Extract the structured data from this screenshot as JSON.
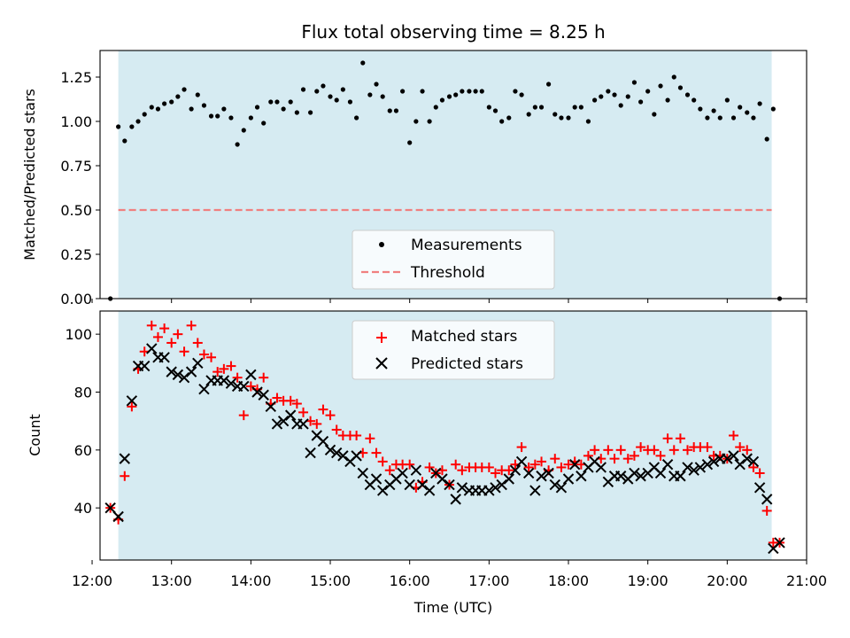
{
  "figure": {
    "title": "Flux total observing time = 8.25 h"
  },
  "chart_data": [
    {
      "type": "scatter",
      "title": "Flux total observing time = 8.25 h",
      "xlabel": "",
      "ylabel": "Matched/Predicted stars",
      "xlim": [
        12.1,
        21.0
      ],
      "ylim": [
        0.0,
        1.4
      ],
      "yticks": [
        0.0,
        0.25,
        0.5,
        0.75,
        1.0,
        1.25
      ],
      "ytick_labels": [
        "0.00",
        "0.25",
        "0.50",
        "0.75",
        "1.00",
        "1.25"
      ],
      "grid": false,
      "legend": {
        "placement": "lower-center",
        "entries": [
          "Measurements",
          "Threshold"
        ]
      },
      "observing_window": {
        "start": 12.33,
        "end": 20.56,
        "color": "#add8e6"
      },
      "threshold": {
        "name": "Threshold",
        "value": 0.5,
        "x_range": [
          12.33,
          20.56
        ],
        "color": "#f08080",
        "style": "dashed"
      },
      "series": [
        {
          "name": "Measurements",
          "color": "#000000",
          "marker": "dot",
          "x": [
            12.23,
            12.33,
            12.41,
            12.5,
            12.58,
            12.66,
            12.75,
            12.83,
            12.91,
            13.0,
            13.08,
            13.16,
            13.25,
            13.33,
            13.41,
            13.5,
            13.58,
            13.66,
            13.75,
            13.83,
            13.91,
            14.0,
            14.08,
            14.16,
            14.25,
            14.33,
            14.41,
            14.5,
            14.58,
            14.66,
            14.75,
            14.83,
            14.91,
            15.0,
            15.08,
            15.16,
            15.25,
            15.33,
            15.41,
            15.5,
            15.58,
            15.66,
            15.75,
            15.83,
            15.91,
            16.0,
            16.08,
            16.16,
            16.25,
            16.33,
            16.41,
            16.5,
            16.58,
            16.66,
            16.75,
            16.83,
            16.91,
            17.0,
            17.08,
            17.16,
            17.25,
            17.33,
            17.41,
            17.5,
            17.58,
            17.66,
            17.75,
            17.83,
            17.91,
            18.0,
            18.08,
            18.16,
            18.25,
            18.33,
            18.41,
            18.5,
            18.58,
            18.66,
            18.75,
            18.83,
            18.91,
            19.0,
            19.08,
            19.16,
            19.25,
            19.33,
            19.41,
            19.5,
            19.58,
            19.66,
            19.75,
            19.83,
            19.91,
            20.0,
            20.08,
            20.16,
            20.25,
            20.33,
            20.41,
            20.5,
            20.58,
            20.66
          ],
          "y": [
            0.0,
            0.97,
            0.89,
            0.97,
            1.0,
            1.04,
            1.08,
            1.07,
            1.1,
            1.11,
            1.14,
            1.18,
            1.07,
            1.15,
            1.09,
            1.03,
            1.03,
            1.07,
            1.02,
            0.87,
            0.95,
            1.02,
            1.08,
            0.99,
            1.11,
            1.11,
            1.07,
            1.11,
            1.05,
            1.18,
            1.05,
            1.17,
            1.2,
            1.14,
            1.12,
            1.18,
            1.11,
            1.02,
            1.33,
            1.15,
            1.21,
            1.14,
            1.06,
            1.06,
            1.17,
            0.88,
            1.0,
            1.17,
            1.0,
            1.08,
            1.12,
            1.14,
            1.15,
            1.17,
            1.17,
            1.17,
            1.17,
            1.08,
            1.06,
            1.0,
            1.02,
            1.17,
            1.15,
            1.04,
            1.08,
            1.08,
            1.21,
            1.04,
            1.02,
            1.02,
            1.08,
            1.08,
            1.0,
            1.12,
            1.14,
            1.17,
            1.15,
            1.09,
            1.14,
            1.22,
            1.11,
            1.17,
            1.04,
            1.2,
            1.12,
            1.25,
            1.19,
            1.15,
            1.12,
            1.07,
            1.02,
            1.06,
            1.02,
            1.12,
            1.02,
            1.08,
            1.05,
            1.02,
            1.1,
            0.9,
            1.07,
            0.0
          ]
        }
      ]
    },
    {
      "type": "scatter",
      "title": "",
      "xlabel": "Time (UTC)",
      "ylabel": "Count",
      "xlim": [
        12.1,
        21.0
      ],
      "ylim": [
        22,
        108
      ],
      "yticks": [
        40,
        60,
        80,
        100
      ],
      "ytick_labels": [
        "40",
        "60",
        "80",
        "100"
      ],
      "xticks": [
        12,
        13,
        14,
        15,
        16,
        17,
        18,
        19,
        20,
        21
      ],
      "xtick_labels": [
        "12:00",
        "13:00",
        "14:00",
        "15:00",
        "16:00",
        "17:00",
        "18:00",
        "19:00",
        "20:00",
        "21:00"
      ],
      "grid": false,
      "legend": {
        "placement": "upper-center",
        "entries": [
          "Matched stars",
          "Predicted stars"
        ]
      },
      "observing_window": {
        "start": 12.33,
        "end": 20.56,
        "color": "#add8e6"
      },
      "x": [
        12.23,
        12.33,
        12.41,
        12.5,
        12.58,
        12.66,
        12.75,
        12.83,
        12.91,
        13.0,
        13.08,
        13.16,
        13.25,
        13.33,
        13.41,
        13.5,
        13.58,
        13.66,
        13.75,
        13.83,
        13.91,
        14.0,
        14.08,
        14.16,
        14.25,
        14.33,
        14.41,
        14.5,
        14.58,
        14.66,
        14.75,
        14.83,
        14.91,
        15.0,
        15.08,
        15.16,
        15.25,
        15.33,
        15.41,
        15.5,
        15.58,
        15.66,
        15.75,
        15.83,
        15.91,
        16.0,
        16.08,
        16.16,
        16.25,
        16.33,
        16.41,
        16.5,
        16.58,
        16.66,
        16.75,
        16.83,
        16.91,
        17.0,
        17.08,
        17.16,
        17.25,
        17.33,
        17.41,
        17.5,
        17.58,
        17.66,
        17.75,
        17.83,
        17.91,
        18.0,
        18.08,
        18.16,
        18.25,
        18.33,
        18.41,
        18.5,
        18.58,
        18.66,
        18.75,
        18.83,
        18.91,
        19.0,
        19.08,
        19.16,
        19.25,
        19.33,
        19.41,
        19.5,
        19.58,
        19.66,
        19.75,
        19.83,
        19.91,
        20.0,
        20.08,
        20.16,
        20.25,
        20.33,
        20.41,
        20.5,
        20.58,
        20.66
      ],
      "series": [
        {
          "name": "Matched stars",
          "color": "#ff0000",
          "marker": "plus",
          "values": [
            40,
            36,
            51,
            75,
            88,
            94,
            103,
            99,
            102,
            97,
            100,
            94,
            103,
            97,
            93,
            92,
            87,
            88,
            89,
            85,
            72,
            82,
            81,
            85,
            76,
            78,
            77,
            77,
            76,
            73,
            70,
            69,
            74,
            72,
            67,
            65,
            65,
            65,
            59,
            64,
            59,
            56,
            53,
            55,
            55,
            55,
            47,
            49,
            54,
            52,
            53,
            48,
            55,
            53,
            54,
            54,
            54,
            54,
            52,
            53,
            53,
            55,
            61,
            54,
            55,
            56,
            53,
            57,
            54,
            55,
            56,
            55,
            58,
            60,
            57,
            60,
            57,
            60,
            57,
            58,
            61,
            60,
            60,
            58,
            64,
            60,
            64,
            60,
            61,
            61,
            61,
            58,
            58,
            57,
            65,
            61,
            60,
            54,
            52,
            39,
            28,
            28
          ]
        },
        {
          "name": "Predicted stars",
          "color": "#000000",
          "marker": "x",
          "values": [
            40,
            37,
            57,
            77,
            89,
            89,
            95,
            92,
            92,
            87,
            86,
            85,
            87,
            90,
            81,
            84,
            84,
            84,
            83,
            82,
            82,
            86,
            80,
            79,
            75,
            69,
            70,
            72,
            69,
            69,
            59,
            65,
            63,
            60,
            59,
            58,
            56,
            58,
            52,
            48,
            50,
            46,
            48,
            50,
            52,
            48,
            53,
            48,
            46,
            52,
            50,
            48,
            43,
            47,
            46,
            46,
            46,
            46,
            47,
            48,
            50,
            53,
            56,
            52,
            46,
            51,
            52,
            48,
            47,
            50,
            55,
            51,
            54,
            56,
            54,
            49,
            51,
            51,
            50,
            52,
            51,
            52,
            54,
            52,
            55,
            51,
            51,
            54,
            53,
            54,
            55,
            56,
            57,
            57,
            58,
            55,
            57,
            56,
            47,
            43,
            26,
            28
          ]
        }
      ]
    }
  ]
}
